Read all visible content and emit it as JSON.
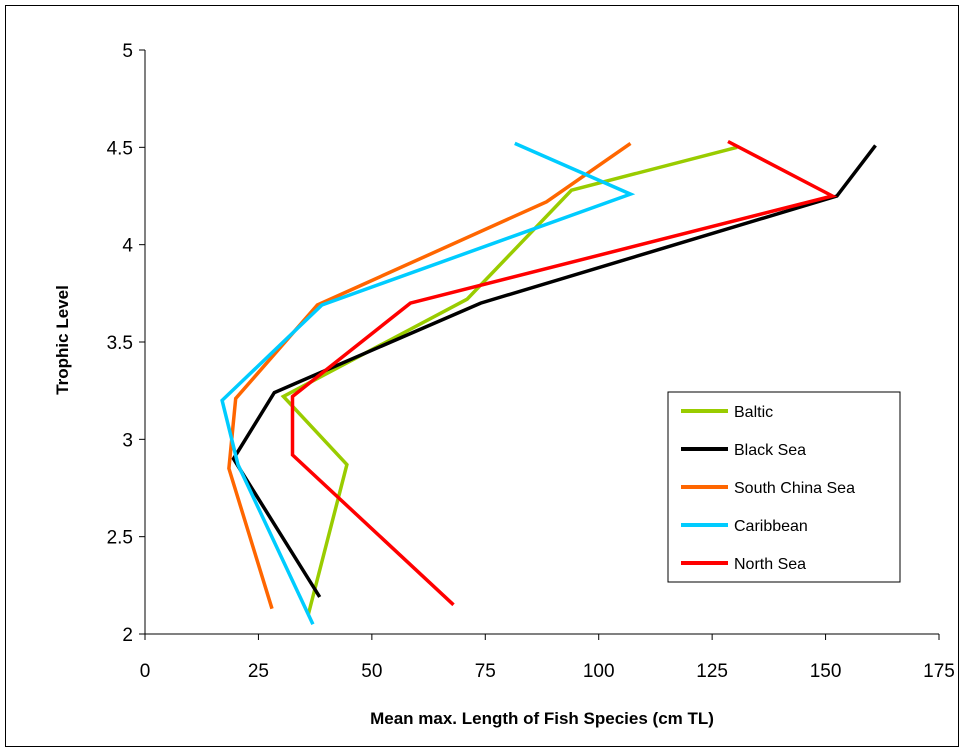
{
  "chart_data": {
    "type": "line",
    "title": "",
    "xlabel": "Mean max. Length of Fish Species (cm TL)",
    "ylabel": "Trophic Level",
    "xlim": [
      0,
      175
    ],
    "ylim": [
      2,
      5
    ],
    "xticks": [
      "0",
      "25",
      "50",
      "75",
      "100",
      "125",
      "150",
      "175"
    ],
    "yticks": [
      "2",
      "2.5",
      "3",
      "3.5",
      "4",
      "4.5",
      "5"
    ],
    "grid": false,
    "legend_position": "bottom-right",
    "series": [
      {
        "name": "Baltic",
        "color": "#99cc00",
        "points": [
          [
            36,
            2.1
          ],
          [
            44.5,
            2.87
          ],
          [
            30.5,
            3.22
          ],
          [
            71,
            3.72
          ],
          [
            94,
            4.28
          ],
          [
            130.5,
            4.5
          ]
        ]
      },
      {
        "name": "Black Sea",
        "color": "#000000",
        "points": [
          [
            38.5,
            2.19
          ],
          [
            19.5,
            2.9
          ],
          [
            28.5,
            3.24
          ],
          [
            74,
            3.7
          ],
          [
            152.5,
            4.25
          ],
          [
            161,
            4.51
          ]
        ]
      },
      {
        "name": "South China Sea",
        "color": "#ff6600",
        "points": [
          [
            28,
            2.13
          ],
          [
            18.5,
            2.85
          ],
          [
            20,
            3.21
          ],
          [
            38,
            3.69
          ],
          [
            88.5,
            4.22
          ],
          [
            107,
            4.52
          ]
        ]
      },
      {
        "name": "Caribbean",
        "color": "#00ccff",
        "points": [
          [
            37,
            2.05
          ],
          [
            20.5,
            2.87
          ],
          [
            17,
            3.2
          ],
          [
            39,
            3.69
          ],
          [
            107,
            4.26
          ],
          [
            81.5,
            4.52
          ]
        ]
      },
      {
        "name": "North Sea",
        "color": "#ff0000",
        "points": [
          [
            68,
            2.15
          ],
          [
            32.5,
            2.92
          ],
          [
            32.5,
            3.22
          ],
          [
            58.5,
            3.7
          ],
          [
            151.5,
            4.25
          ],
          [
            128.5,
            4.53
          ]
        ]
      }
    ]
  }
}
